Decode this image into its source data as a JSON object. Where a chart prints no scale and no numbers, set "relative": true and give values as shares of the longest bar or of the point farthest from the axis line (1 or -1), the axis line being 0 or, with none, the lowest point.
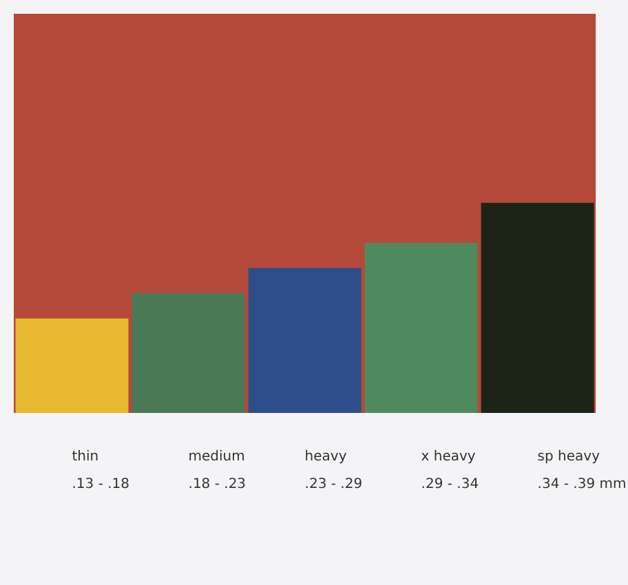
{
  "chart_data": {
    "type": "bar",
    "relative": true,
    "categories": [
      "thin\n.13 - .18",
      "medium\n.18 - .23",
      "heavy\n.23 - .29",
      "x heavy\n.29 - .34",
      "sp heavy\n.34 - .39 mm"
    ],
    "values": [
      0.45,
      0.57,
      0.69,
      0.81,
      1
    ],
    "colors": [
      "#e8b830",
      "#4a7a55",
      "#2e4e8a",
      "#4f8a5e",
      "#1c2418"
    ]
  }
}
